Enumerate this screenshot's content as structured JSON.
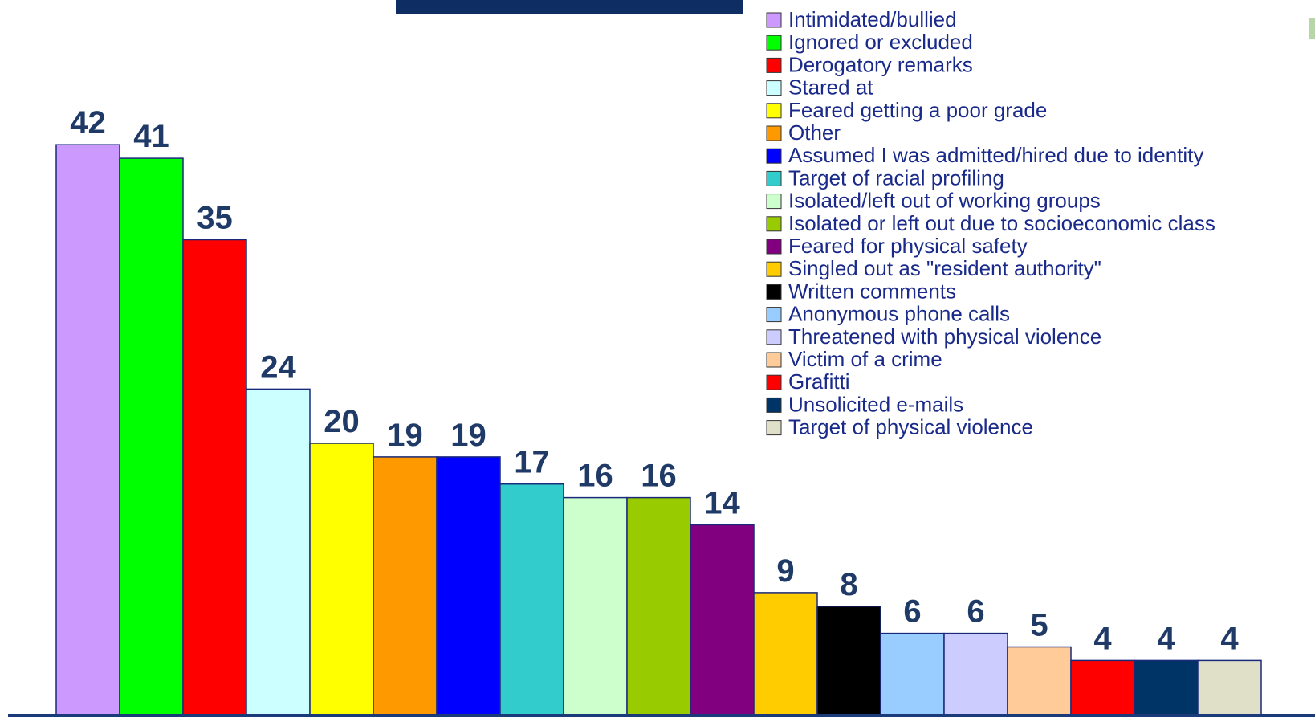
{
  "chart_data": {
    "type": "bar",
    "categories": [
      "Intimidated/bullied",
      "Ignored or excluded",
      "Derogatory remarks",
      "Stared at",
      "Feared getting a poor grade",
      "Other",
      "Assumed I was admitted/hired due to identity",
      "Target of racial profiling",
      "Isolated/left out of working groups",
      "Isolated or left out due to socioeconomic class",
      "Feared for physical safety",
      "Singled out as \"resident authority\"",
      "Written comments",
      "Anonymous phone calls",
      "Threatened with physical violence",
      "Victim of a crime",
      "Grafitti",
      "Unsolicited e-mails",
      "Target of physical violence"
    ],
    "values": [
      42,
      41,
      35,
      24,
      20,
      19,
      19,
      17,
      16,
      16,
      14,
      9,
      8,
      6,
      6,
      5,
      4,
      4,
      4
    ],
    "colors": [
      "#cc99ff",
      "#00ff00",
      "#ff0000",
      "#ccffff",
      "#ffff00",
      "#ff9900",
      "#0000ff",
      "#33cccc",
      "#ccffcc",
      "#99cc00",
      "#800080",
      "#ffcc00",
      "#000000",
      "#99ccff",
      "#ccccff",
      "#ffcc99",
      "#ff0000",
      "#003366",
      "#e0dfc8"
    ],
    "ylim": [
      0,
      47
    ],
    "grid": false,
    "legend_position": "top-right",
    "data_labels": true,
    "label_color": "#1f3a66",
    "axis_color": "#1a3a7a"
  }
}
